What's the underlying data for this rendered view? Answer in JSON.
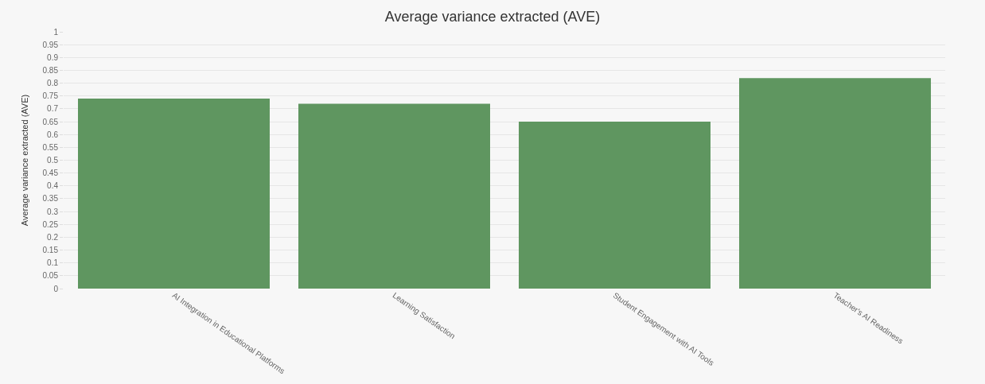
{
  "chart_data": {
    "type": "bar",
    "title": "Average variance extracted (AVE)",
    "ylabel": "Average variance extracted (AVE)",
    "categories": [
      "AI Integration in Educational Platforms",
      "Learning Satisfaction",
      "Student Engagement with AI Tools",
      "Teacher's AI Readiness"
    ],
    "values": [
      0.74,
      0.72,
      0.65,
      0.82
    ],
    "color": "#5f9660",
    "ylim": [
      0,
      1
    ],
    "yticks": [
      0,
      0.05,
      0.1,
      0.15,
      0.2,
      0.25,
      0.3,
      0.35,
      0.4,
      0.45,
      0.5,
      0.55,
      0.6,
      0.65,
      0.7,
      0.75,
      0.8,
      0.85,
      0.9,
      0.95,
      1
    ],
    "grid": "y",
    "legend": false
  }
}
